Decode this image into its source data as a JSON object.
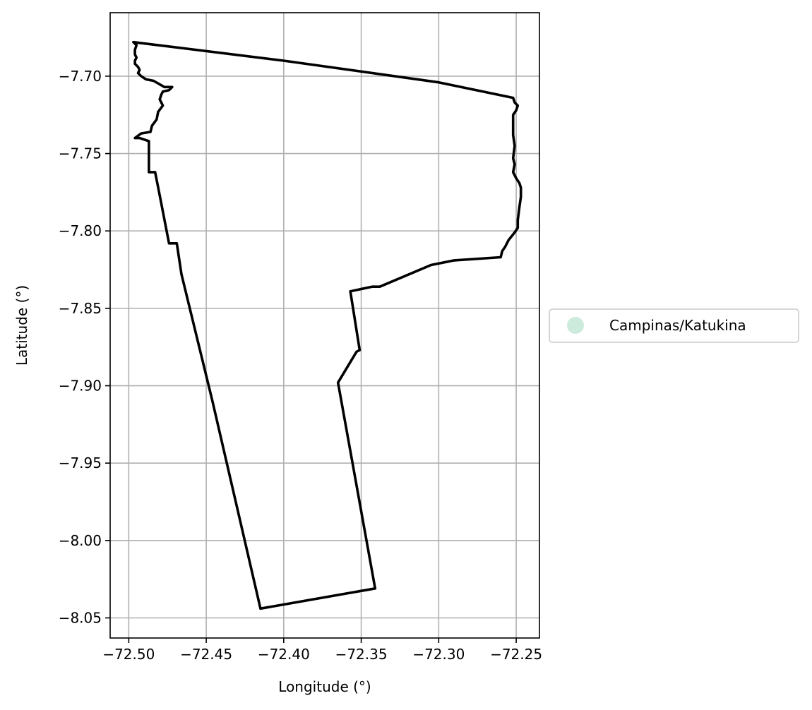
{
  "chart_data": {
    "type": "map",
    "title": "",
    "xlabel": "Longitude (°)",
    "ylabel": "Latitude (°)",
    "grid": true,
    "xlim": [
      -72.512,
      -72.235
    ],
    "ylim": [
      -8.063,
      -7.659
    ],
    "x_ticks": [
      -72.5,
      -72.45,
      -72.4,
      -72.35,
      -72.3,
      -72.25
    ],
    "x_tick_labels": [
      "−72.50",
      "−72.45",
      "−72.40",
      "−72.35",
      "−72.30",
      "−72.25"
    ],
    "y_ticks": [
      -7.7,
      -7.75,
      -7.8,
      -7.85,
      -7.9,
      -7.95,
      -8.0,
      -8.05
    ],
    "y_tick_labels": [
      "−7.70",
      "−7.75",
      "−7.80",
      "−7.85",
      "−7.90",
      "−7.95",
      "−8.00",
      "−8.05"
    ],
    "legend": {
      "placement": "right-outside-center",
      "entries": [
        {
          "label": "Campinas/Katukina",
          "color": "#cdebdc"
        }
      ]
    },
    "boundary": {
      "name": "Campinas/Katukina",
      "fill_color": "#cdebdc",
      "stroke_color": "#000000",
      "coordinates": [
        [
          -72.497,
          -7.678
        ],
        [
          -72.4,
          -7.69
        ],
        [
          -72.3,
          -7.704
        ],
        [
          -72.252,
          -7.714
        ],
        [
          -72.251,
          -7.717
        ],
        [
          -72.249,
          -7.719
        ],
        [
          -72.25,
          -7.722
        ],
        [
          -72.252,
          -7.725
        ],
        [
          -72.252,
          -7.73
        ],
        [
          -72.252,
          -7.738
        ],
        [
          -72.251,
          -7.745
        ],
        [
          -72.252,
          -7.753
        ],
        [
          -72.251,
          -7.757
        ],
        [
          -72.252,
          -7.762
        ],
        [
          -72.25,
          -7.766
        ],
        [
          -72.248,
          -7.769
        ],
        [
          -72.247,
          -7.772
        ],
        [
          -72.247,
          -7.778
        ],
        [
          -72.248,
          -7.785
        ],
        [
          -72.249,
          -7.793
        ],
        [
          -72.249,
          -7.798
        ],
        [
          -72.251,
          -7.801
        ],
        [
          -72.255,
          -7.806
        ],
        [
          -72.257,
          -7.81
        ],
        [
          -72.259,
          -7.813
        ],
        [
          -72.26,
          -7.817
        ],
        [
          -72.29,
          -7.819
        ],
        [
          -72.305,
          -7.822
        ],
        [
          -72.338,
          -7.836
        ],
        [
          -72.343,
          -7.836
        ],
        [
          -72.357,
          -7.839
        ],
        [
          -72.351,
          -7.877
        ],
        [
          -72.353,
          -7.878
        ],
        [
          -72.365,
          -7.898
        ],
        [
          -72.341,
          -8.031
        ],
        [
          -72.415,
          -8.044
        ],
        [
          -72.446,
          -7.91
        ],
        [
          -72.466,
          -7.828
        ],
        [
          -72.469,
          -7.808
        ],
        [
          -72.474,
          -7.808
        ],
        [
          -72.48,
          -7.777
        ],
        [
          -72.483,
          -7.762
        ],
        [
          -72.487,
          -7.762
        ],
        [
          -72.487,
          -7.742
        ],
        [
          -72.493,
          -7.74
        ],
        [
          -72.496,
          -7.74
        ],
        [
          -72.492,
          -7.737
        ],
        [
          -72.486,
          -7.736
        ],
        [
          -72.485,
          -7.732
        ],
        [
          -72.482,
          -7.728
        ],
        [
          -72.481,
          -7.723
        ],
        [
          -72.478,
          -7.719
        ],
        [
          -72.48,
          -7.715
        ],
        [
          -72.479,
          -7.712
        ],
        [
          -72.478,
          -7.71
        ],
        [
          -72.474,
          -7.709
        ],
        [
          -72.472,
          -7.707
        ],
        [
          -72.477,
          -7.707
        ],
        [
          -72.484,
          -7.703
        ],
        [
          -72.489,
          -7.702
        ],
        [
          -72.492,
          -7.7
        ],
        [
          -72.494,
          -7.698
        ],
        [
          -72.493,
          -7.696
        ],
        [
          -72.494,
          -7.694
        ],
        [
          -72.496,
          -7.692
        ],
        [
          -72.496,
          -7.69
        ],
        [
          -72.495,
          -7.688
        ],
        [
          -72.496,
          -7.686
        ],
        [
          -72.496,
          -7.683
        ],
        [
          -72.495,
          -7.68
        ],
        [
          -72.496,
          -7.679
        ],
        [
          -72.497,
          -7.678
        ]
      ]
    }
  }
}
